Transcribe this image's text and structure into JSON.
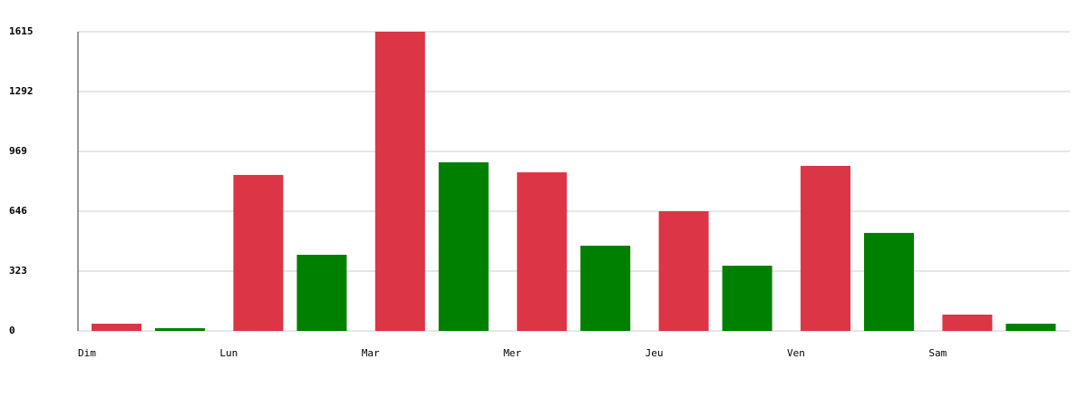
{
  "chart_data": {
    "type": "bar",
    "categories": [
      "Dim",
      "Lun",
      "Mar",
      "Mer",
      "Jeu",
      "Ven",
      "Sam"
    ],
    "series": [
      {
        "color": "#dc3545",
        "values": [
          39,
          842,
          1615,
          856,
          646,
          891,
          88
        ]
      },
      {
        "color": "#008000",
        "values": [
          15,
          411,
          910,
          460,
          352,
          529,
          39
        ]
      }
    ],
    "ylim": [
      0,
      1615
    ],
    "yticks": [
      0,
      323,
      646,
      969,
      1292,
      1615
    ],
    "grid": true
  }
}
